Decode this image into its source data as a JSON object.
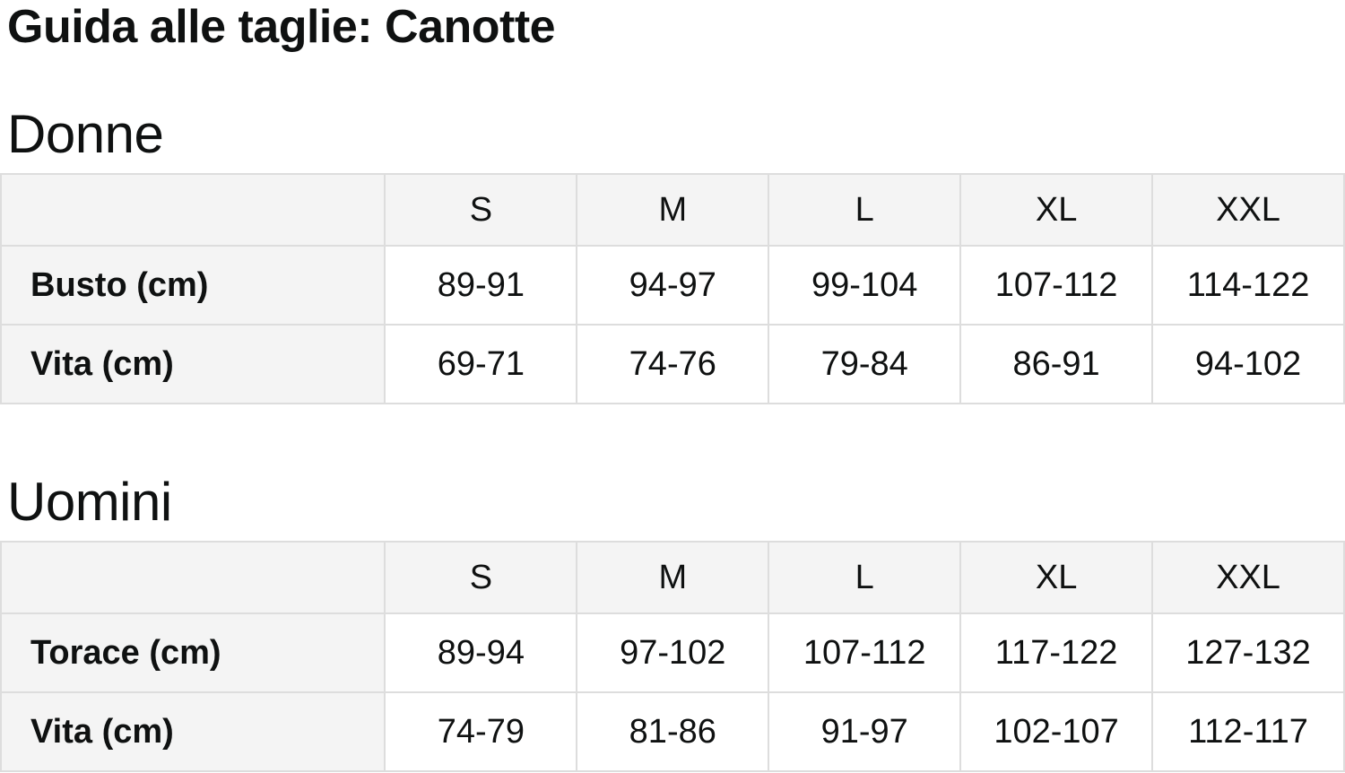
{
  "page": {
    "title": "Guida alle taglie: Canotte"
  },
  "colors": {
    "header_cell_bg": "#f4f4f4",
    "data_cell_bg": "#ffffff",
    "border": "#dddddd",
    "text": "#0f1111"
  },
  "sections": [
    {
      "heading": "Donne",
      "table": {
        "columns": [
          "",
          "S",
          "M",
          "L",
          "XL",
          "XXL"
        ],
        "rows": [
          {
            "label": "Busto (cm)",
            "values": [
              "89-91",
              "94-97",
              "99-104",
              "107-112",
              "114-122"
            ]
          },
          {
            "label": "Vita (cm)",
            "values": [
              "69-71",
              "74-76",
              "79-84",
              "86-91",
              "94-102"
            ]
          }
        ]
      }
    },
    {
      "heading": "Uomini",
      "table": {
        "columns": [
          "",
          "S",
          "M",
          "L",
          "XL",
          "XXL"
        ],
        "rows": [
          {
            "label": "Torace (cm)",
            "values": [
              "89-94",
              "97-102",
              "107-112",
              "117-122",
              "127-132"
            ]
          },
          {
            "label": "Vita (cm)",
            "values": [
              "74-79",
              "81-86",
              "91-97",
              "102-107",
              "112-117"
            ]
          }
        ]
      }
    }
  ]
}
